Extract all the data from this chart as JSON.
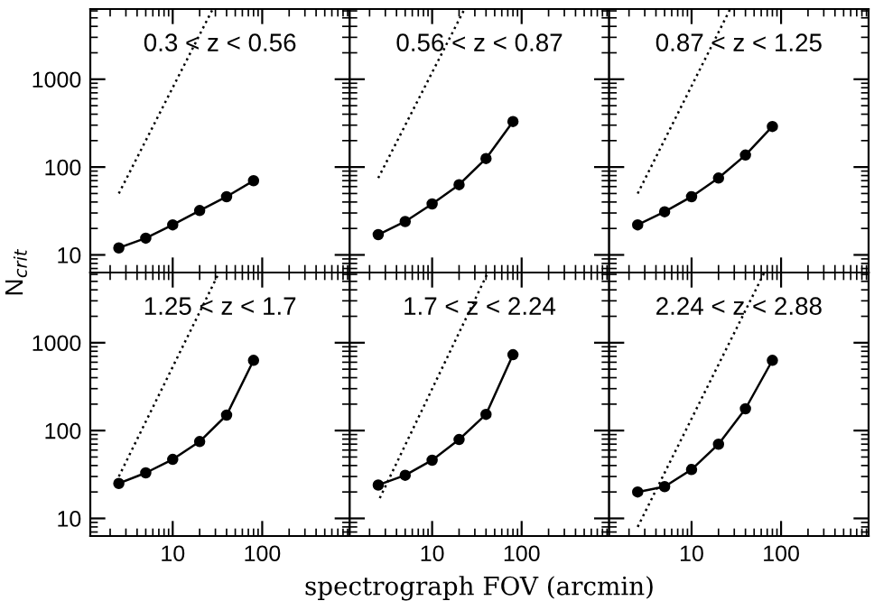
{
  "chart_data": [
    {
      "type": "line",
      "title": "0.3 < z < 0.56",
      "ylabel": "N$_{crit}$",
      "log": "xy",
      "xlim": [
        1.2,
        950
      ],
      "ylim": [
        6.3,
        6300
      ],
      "xticks": [
        10,
        100
      ],
      "yticks": [
        10,
        100,
        1000
      ],
      "tick_labels": "y",
      "grid": false,
      "legend": false,
      "series": [
        {
          "color": "#000000",
          "marker": "circle",
          "line_style": "solid",
          "x": [
            2.5,
            5,
            10,
            20,
            40,
            80
          ],
          "values": [
            12,
            15.5,
            22,
            32,
            46,
            70
          ]
        },
        {
          "color": "#000000",
          "marker": "none",
          "line_style": "dotted",
          "x": [
            2.5,
            28
          ],
          "values": [
            50,
            6300
          ]
        }
      ]
    },
    {
      "type": "line",
      "title": "0.56 < z < 0.87",
      "log": "xy",
      "xlim": [
        1.2,
        950
      ],
      "ylim": [
        6.3,
        6300
      ],
      "xticks": [
        10,
        100
      ],
      "yticks": [
        10,
        100,
        1000
      ],
      "tick_labels": false,
      "grid": false,
      "legend": false,
      "series": [
        {
          "color": "#000000",
          "marker": "circle",
          "line_style": "solid",
          "x": [
            2.5,
            5,
            10,
            20,
            40,
            80
          ],
          "values": [
            17,
            24,
            38,
            63,
            125,
            330
          ]
        },
        {
          "color": "#000000",
          "marker": "none",
          "line_style": "dotted",
          "x": [
            2.5,
            23
          ],
          "values": [
            75,
            6300
          ]
        }
      ]
    },
    {
      "type": "line",
      "title": "0.87 < z < 1.25",
      "log": "xy",
      "xlim": [
        1.2,
        950
      ],
      "ylim": [
        6.3,
        6300
      ],
      "xticks": [
        10,
        100
      ],
      "yticks": [
        10,
        100,
        1000
      ],
      "tick_labels": false,
      "grid": false,
      "legend": false,
      "series": [
        {
          "color": "#000000",
          "marker": "circle",
          "line_style": "solid",
          "x": [
            2.5,
            5,
            10,
            20,
            40,
            80
          ],
          "values": [
            22,
            31,
            46,
            75,
            137,
            290
          ]
        },
        {
          "color": "#000000",
          "marker": "none",
          "line_style": "dotted",
          "x": [
            2.5,
            27
          ],
          "values": [
            50,
            6300
          ]
        }
      ]
    },
    {
      "type": "line",
      "title": "1.25 < z < 1.7",
      "log": "xy",
      "xlim": [
        1.2,
        950
      ],
      "ylim": [
        6.3,
        6300
      ],
      "xticks": [
        10,
        100
      ],
      "yticks": [
        10,
        100,
        1000
      ],
      "grid": false,
      "legend": false,
      "series": [
        {
          "color": "#000000",
          "marker": "circle",
          "line_style": "solid",
          "x": [
            2.5,
            5,
            10,
            20,
            40,
            80
          ],
          "values": [
            25,
            33,
            47,
            75,
            150,
            630
          ]
        },
        {
          "color": "#000000",
          "marker": "none",
          "line_style": "dotted",
          "x": [
            2.5,
            33
          ],
          "values": [
            30,
            6300
          ]
        }
      ]
    },
    {
      "type": "line",
      "title": "1.7 < z < 2.24",
      "xlabel": "spectrograph FOV (arcmin)",
      "log": "xy",
      "xlim": [
        1.2,
        950
      ],
      "ylim": [
        6.3,
        6300
      ],
      "xticks": [
        10,
        100
      ],
      "yticks": [
        10,
        100,
        1000
      ],
      "tick_labels": "x",
      "grid": false,
      "legend": false,
      "series": [
        {
          "color": "#000000",
          "marker": "circle",
          "line_style": "solid",
          "x": [
            2.5,
            5,
            10,
            20,
            40,
            80
          ],
          "values": [
            24,
            31,
            46,
            79,
            153,
            730
          ]
        },
        {
          "color": "#000000",
          "marker": "none",
          "line_style": "dotted",
          "x": [
            2.6,
            42
          ],
          "values": [
            17,
            6300
          ]
        }
      ]
    },
    {
      "type": "line",
      "title": "2.24 < z < 2.88",
      "log": "xy",
      "xlim": [
        1.2,
        950
      ],
      "ylim": [
        6.3,
        6300
      ],
      "xticks": [
        10,
        100
      ],
      "yticks": [
        10,
        100,
        1000
      ],
      "tick_labels": "x",
      "grid": false,
      "legend": false,
      "series": [
        {
          "color": "#000000",
          "marker": "circle",
          "line_style": "solid",
          "x": [
            2.5,
            5,
            10,
            20,
            40,
            80
          ],
          "values": [
            20,
            23,
            36,
            70,
            177,
            630
          ]
        },
        {
          "color": "#000000",
          "marker": "none",
          "line_style": "dotted",
          "x": [
            2.5,
            65
          ],
          "values": [
            8,
            6300
          ]
        }
      ]
    }
  ]
}
